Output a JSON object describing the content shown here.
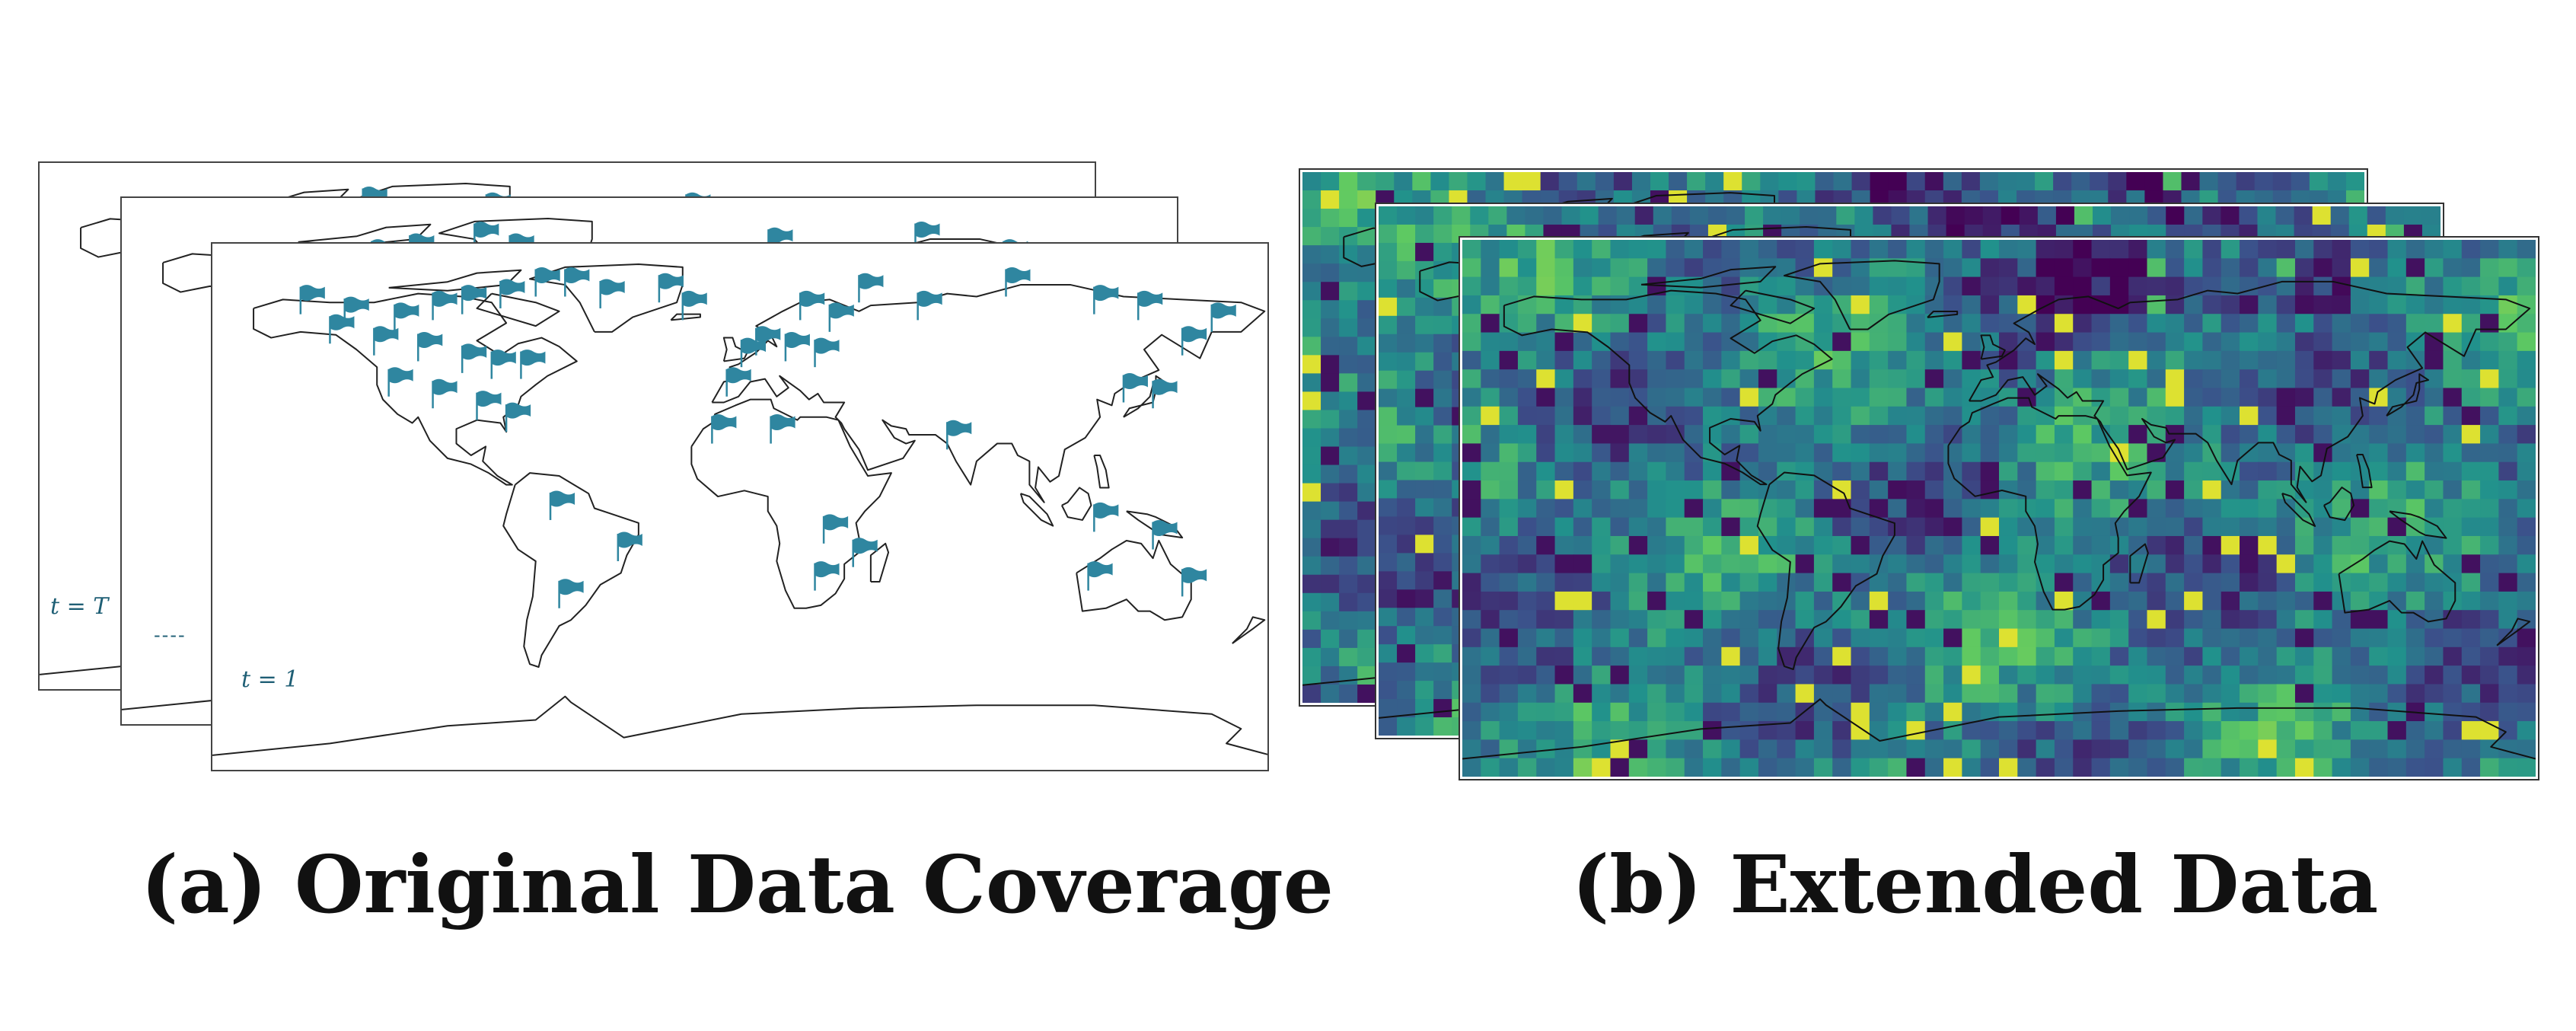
{
  "panel_a": {
    "caption": "(a) Original Data Coverage",
    "label_back": "t = T",
    "label_mid": "----",
    "label_front": "t = 1",
    "flag_color": "#2f86a0"
  },
  "panel_b": {
    "caption": "(b) Extended Data",
    "colormap": [
      "#440154",
      "#3b528b",
      "#21918c",
      "#5ec962",
      "#fde725"
    ]
  }
}
